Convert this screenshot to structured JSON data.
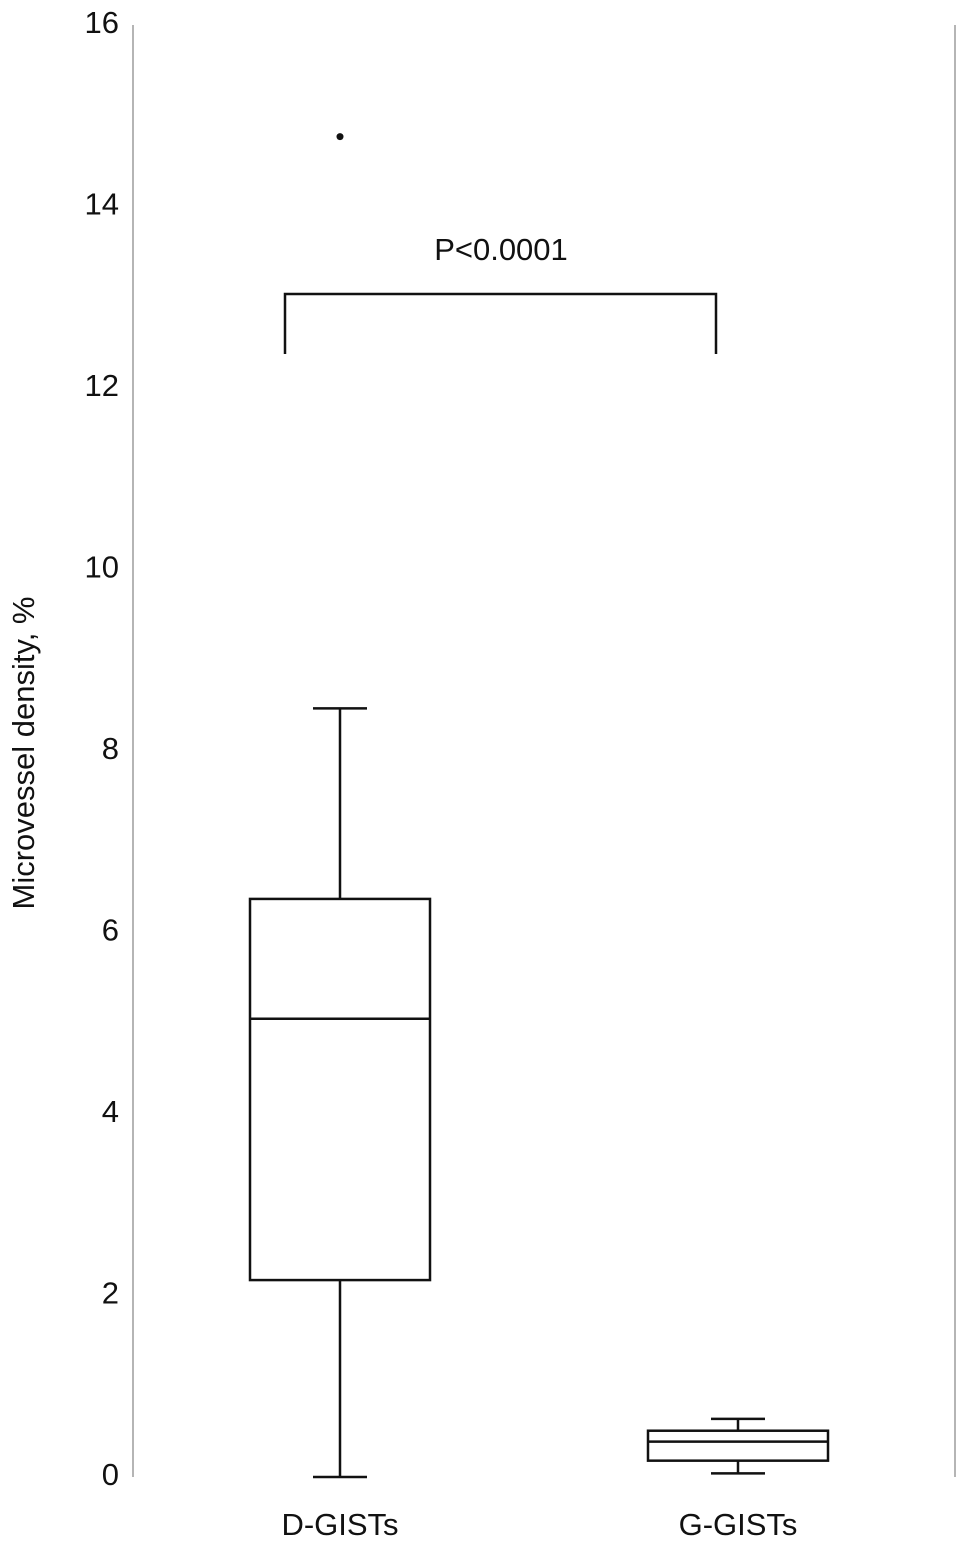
{
  "chart_data": {
    "type": "box",
    "y_label": "Microvessel density, %",
    "categories": [
      "D-GISTs",
      "G-GISTs"
    ],
    "boxes": [
      {
        "min": 0,
        "q1": 2.17,
        "median": 5.05,
        "q3": 6.37,
        "max": 8.47,
        "outliers": [
          14.77
        ]
      },
      {
        "min": 0.04,
        "q1": 0.18,
        "median": 0.39,
        "q3": 0.51,
        "max": 0.64
      }
    ],
    "annotation": "P<0.0001",
    "ylim": [
      0,
      16
    ],
    "yticks": [
      0,
      2,
      4,
      6,
      8,
      10,
      12,
      14,
      16
    ],
    "grid": false
  }
}
